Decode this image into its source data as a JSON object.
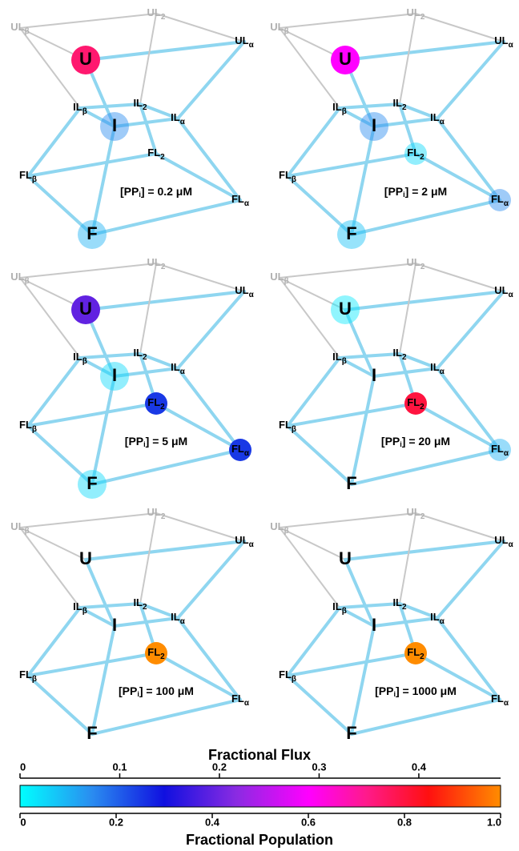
{
  "nodes": [
    {
      "text": "U"
    },
    {
      "text": "I"
    },
    {
      "text": "F"
    },
    {
      "text": "IL",
      "sub": "β"
    },
    {
      "text": "IL",
      "sub": "2"
    },
    {
      "text": "IL",
      "sub": "α"
    },
    {
      "text": "UL",
      "sub": "β"
    },
    {
      "text": "UL",
      "sub": "2"
    },
    {
      "text": "UL",
      "sub": "α"
    },
    {
      "text": "FL",
      "sub": "β"
    },
    {
      "text": "FL",
      "sub": "2"
    },
    {
      "text": "FL",
      "sub": "α"
    }
  ],
  "panels": [
    {
      "conc": {
        "pre": "[PP",
        "sub": "i",
        "post": "] = 0.2 μM"
      },
      "populations": [
        0.75,
        0.15,
        0.1,
        0,
        0,
        0,
        0,
        0,
        0,
        0,
        0,
        0
      ]
    },
    {
      "conc": {
        "pre": "[PP",
        "sub": "i",
        "post": "] = 2 μM"
      },
      "populations": [
        0.6,
        0.15,
        0.08,
        0,
        0,
        0,
        0,
        0,
        0,
        0,
        0.05,
        0.15
      ]
    },
    {
      "conc": {
        "pre": "[PP",
        "sub": "i",
        "post": "] = 5 μM"
      },
      "populations": [
        0.4,
        0.05,
        0.05,
        0,
        0,
        0,
        0,
        0,
        0,
        0,
        0.25,
        0.25
      ]
    },
    {
      "conc": {
        "pre": "[PP",
        "sub": "i",
        "post": "] = 20 μM"
      },
      "populations": [
        0.03,
        0,
        0,
        0,
        0,
        0,
        0,
        0,
        0,
        0,
        0.8,
        0.1
      ]
    },
    {
      "conc": {
        "pre": "[PP",
        "sub": "i",
        "post": "] = 100 μM"
      },
      "populations": [
        0,
        0,
        0,
        0,
        0,
        0,
        0,
        0,
        0,
        0,
        1,
        0
      ]
    },
    {
      "conc": {
        "pre": "[PP",
        "sub": "i",
        "post": "] = 1000 μM"
      },
      "populations": [
        0,
        0,
        0,
        0,
        0,
        0,
        0,
        0,
        0,
        0,
        1,
        0
      ]
    }
  ],
  "colorbar": {
    "flux_title": "Fractional Flux",
    "flux_lim": [
      0,
      0.482
    ],
    "flux_ticks": [
      0,
      0.1,
      0.2,
      0.3,
      0.4
    ],
    "population_title": "Fractional Population",
    "population_lim": [
      0,
      1
    ],
    "population_ticks": [
      0,
      0.2,
      0.4,
      0.6,
      0.8,
      {
        "value": 1,
        "label": "1.0"
      }
    ],
    "colormap": [
      {
        "pos": 0,
        "color": "#00ffff"
      },
      {
        "pos": 0.15,
        "color": "#2a8cf0"
      },
      {
        "pos": 0.3,
        "color": "#1010e0"
      },
      {
        "pos": 0.45,
        "color": "#8a2be2"
      },
      {
        "pos": 0.6,
        "color": "#ff00ff"
      },
      {
        "pos": 0.72,
        "color": "#ff1a8c"
      },
      {
        "pos": 0.85,
        "color": "#ff1010"
      },
      {
        "pos": 1,
        "color": "#ff8c00"
      }
    ]
  }
}
